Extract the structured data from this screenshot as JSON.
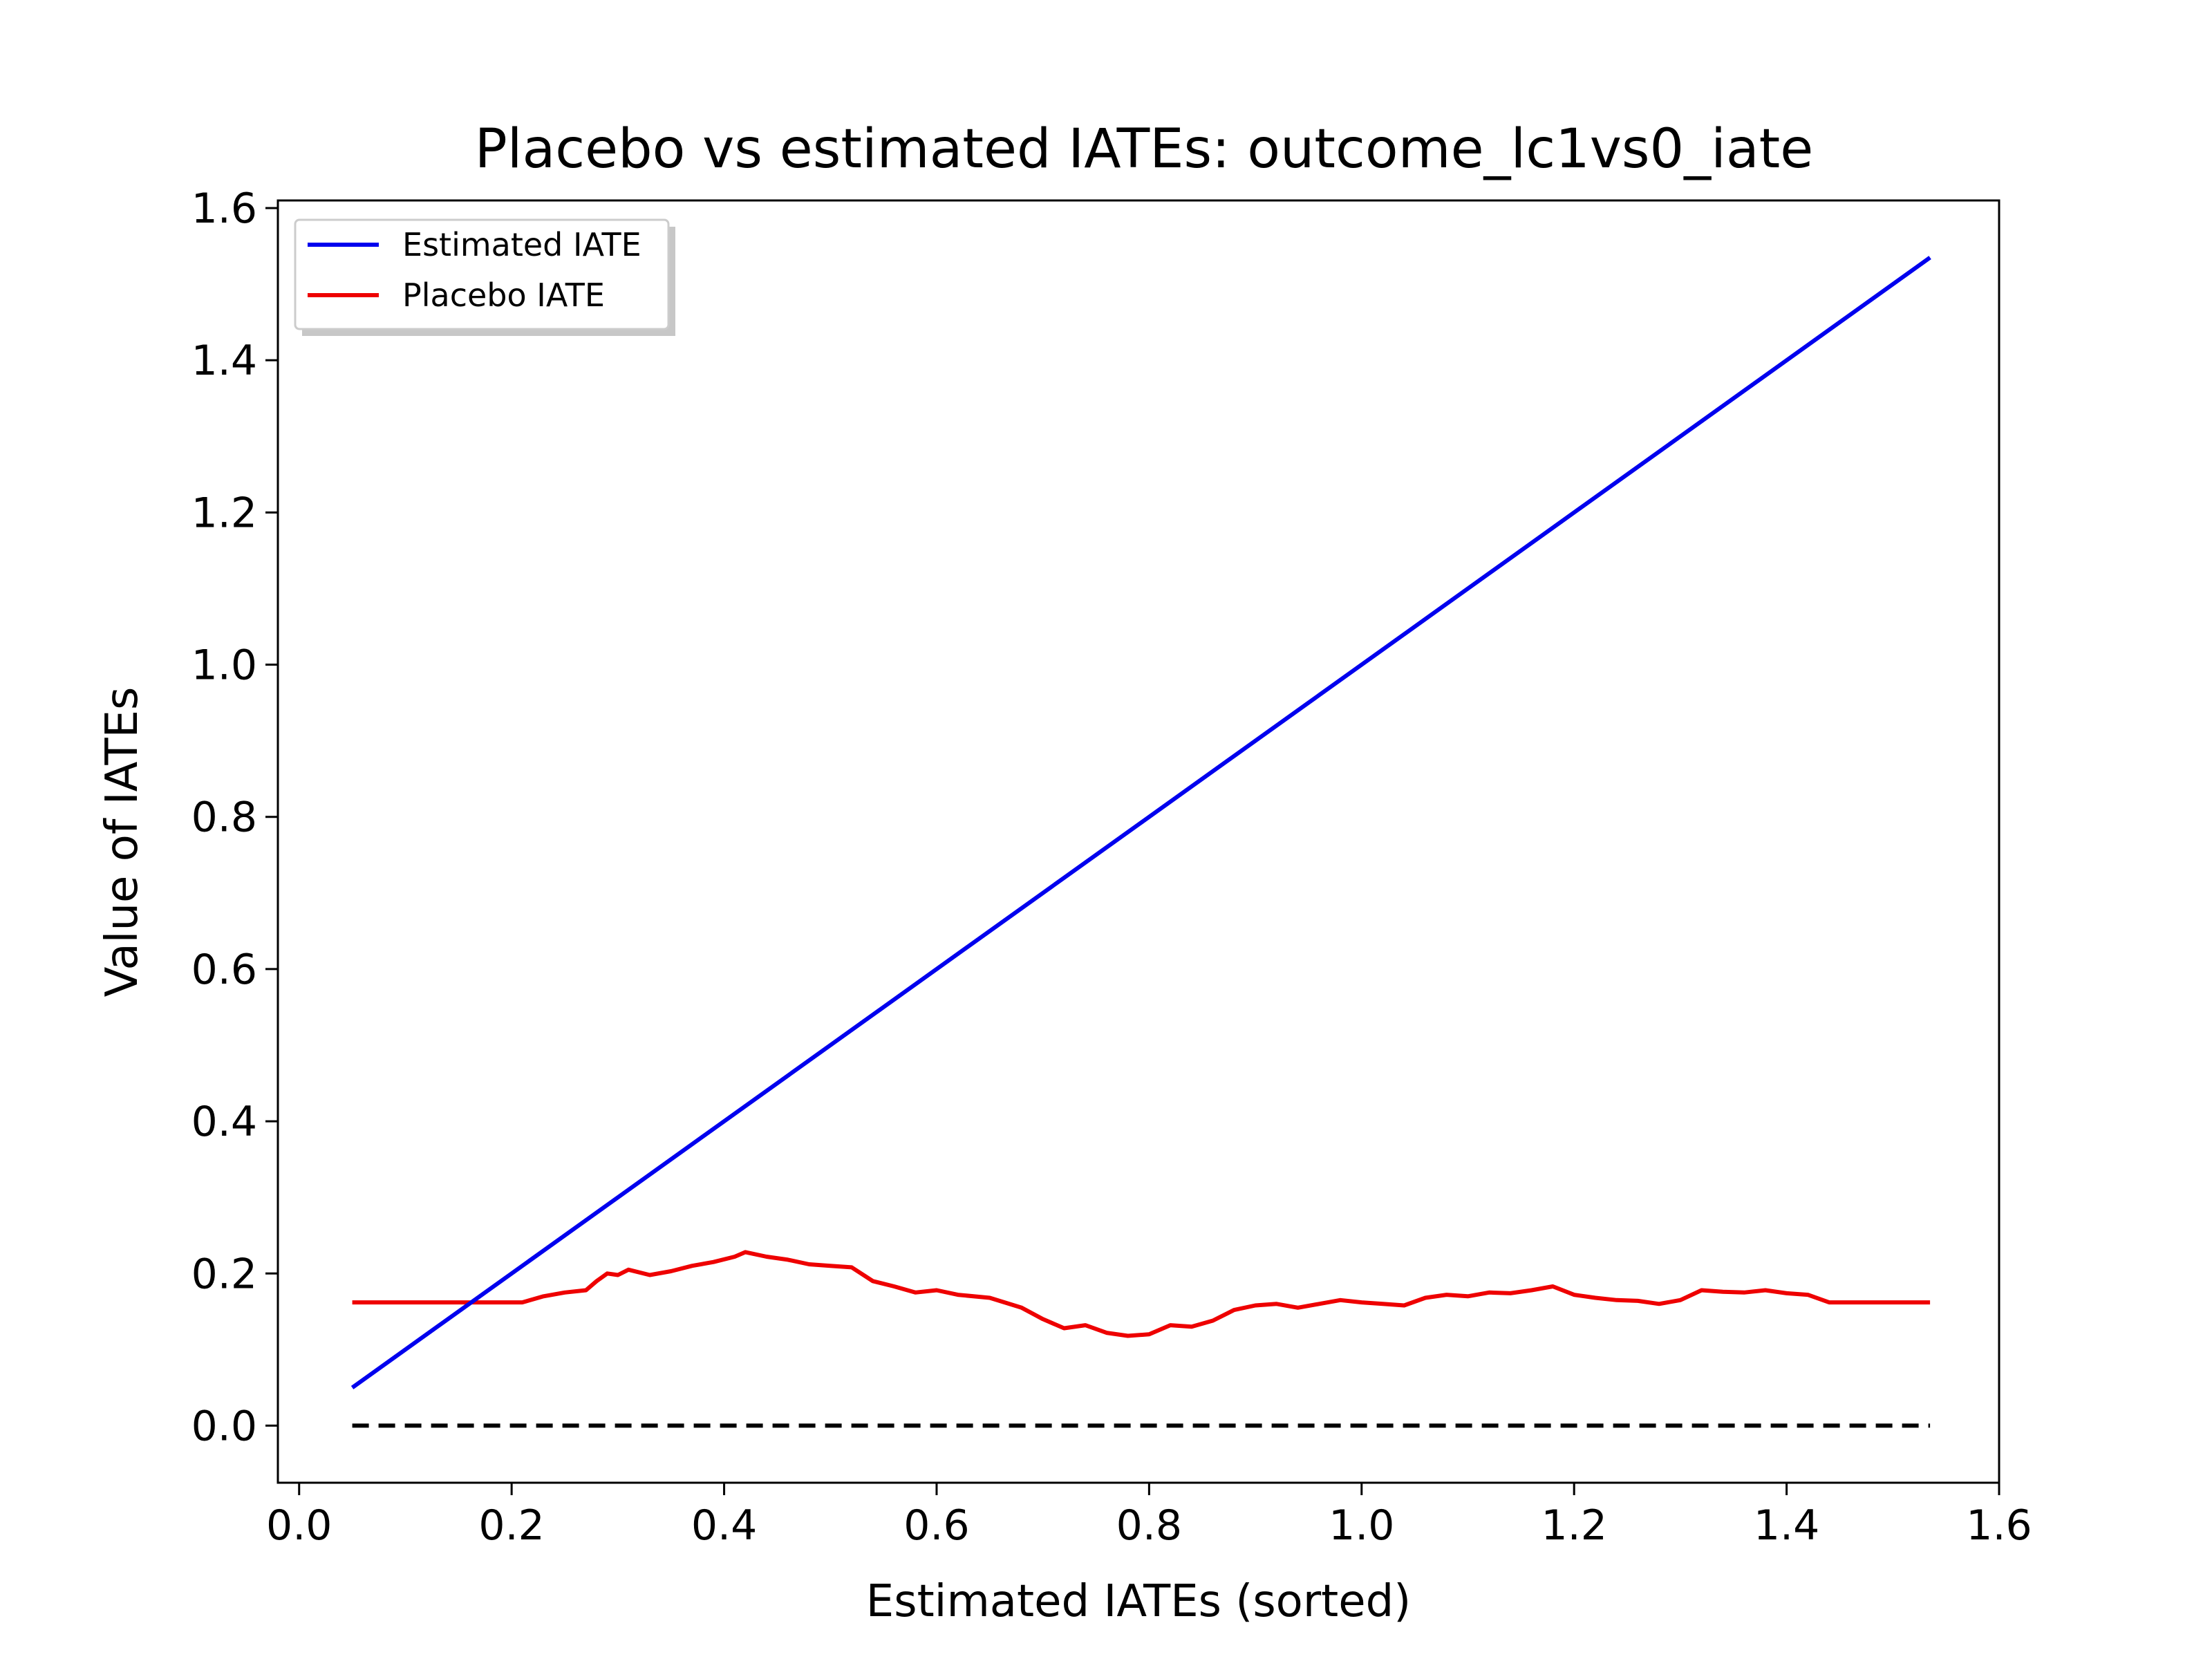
{
  "chart_data": {
    "type": "line",
    "title": "Placebo vs estimated IATEs: outcome_lc1vs0_iate",
    "xlabel": "Estimated IATEs (sorted)",
    "ylabel": "Value of IATEs",
    "xlim": [
      -0.02,
      1.6
    ],
    "ylim": [
      -0.075,
      1.61
    ],
    "xticks": [
      0.0,
      0.2,
      0.4,
      0.6,
      0.8,
      1.0,
      1.2,
      1.4,
      1.6
    ],
    "xtick_labels": [
      "0.0",
      "0.2",
      "0.4",
      "0.6",
      "0.8",
      "1.0",
      "1.2",
      "1.4",
      "1.6"
    ],
    "yticks": [
      0.0,
      0.2,
      0.4,
      0.6,
      0.8,
      1.0,
      1.2,
      1.4,
      1.6
    ],
    "ytick_labels": [
      "0.0",
      "0.2",
      "0.4",
      "0.6",
      "0.8",
      "1.0",
      "1.2",
      "1.4",
      "1.6"
    ],
    "grid": false,
    "legend_position": "top-left",
    "series": [
      {
        "name": "Estimated IATE",
        "color": "#0000ee",
        "style": "solid",
        "x": [
          0.05,
          1.535
        ],
        "y": [
          0.05,
          1.535
        ]
      },
      {
        "name": "Placebo IATE",
        "color": "#ee0000",
        "style": "solid",
        "x": [
          0.05,
          0.21,
          0.23,
          0.25,
          0.27,
          0.28,
          0.29,
          0.3,
          0.31,
          0.33,
          0.35,
          0.37,
          0.39,
          0.41,
          0.42,
          0.44,
          0.46,
          0.48,
          0.5,
          0.52,
          0.54,
          0.56,
          0.58,
          0.6,
          0.62,
          0.65,
          0.68,
          0.7,
          0.72,
          0.74,
          0.76,
          0.78,
          0.8,
          0.82,
          0.84,
          0.86,
          0.88,
          0.9,
          0.92,
          0.94,
          0.96,
          0.98,
          1.0,
          1.02,
          1.04,
          1.06,
          1.08,
          1.1,
          1.12,
          1.14,
          1.16,
          1.18,
          1.2,
          1.22,
          1.24,
          1.26,
          1.28,
          1.3,
          1.32,
          1.34,
          1.36,
          1.38,
          1.4,
          1.42,
          1.44,
          1.535
        ],
        "y": [
          0.162,
          0.162,
          0.17,
          0.175,
          0.178,
          0.19,
          0.2,
          0.198,
          0.205,
          0.198,
          0.203,
          0.21,
          0.215,
          0.222,
          0.228,
          0.222,
          0.218,
          0.212,
          0.21,
          0.208,
          0.19,
          0.183,
          0.175,
          0.178,
          0.172,
          0.168,
          0.155,
          0.14,
          0.128,
          0.132,
          0.122,
          0.118,
          0.12,
          0.132,
          0.13,
          0.138,
          0.152,
          0.158,
          0.16,
          0.155,
          0.16,
          0.165,
          0.162,
          0.16,
          0.158,
          0.168,
          0.172,
          0.17,
          0.175,
          0.174,
          0.178,
          0.183,
          0.172,
          0.168,
          0.165,
          0.164,
          0.16,
          0.165,
          0.178,
          0.176,
          0.175,
          0.178,
          0.174,
          0.172,
          0.162,
          0.162
        ]
      },
      {
        "name": "",
        "color": "#000000",
        "style": "dashed",
        "x": [
          0.05,
          1.535
        ],
        "y": [
          0.0,
          0.0
        ]
      }
    ]
  }
}
